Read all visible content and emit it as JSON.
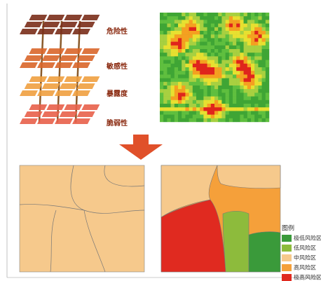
{
  "layers": [
    "危险性",
    "敏感性",
    "暴露度",
    "脆弱性"
  ],
  "legend": {
    "title": "图例",
    "items": [
      "极低风险区",
      "低风险区",
      "中风险区",
      "高风险区",
      "极高风险区"
    ]
  }
}
